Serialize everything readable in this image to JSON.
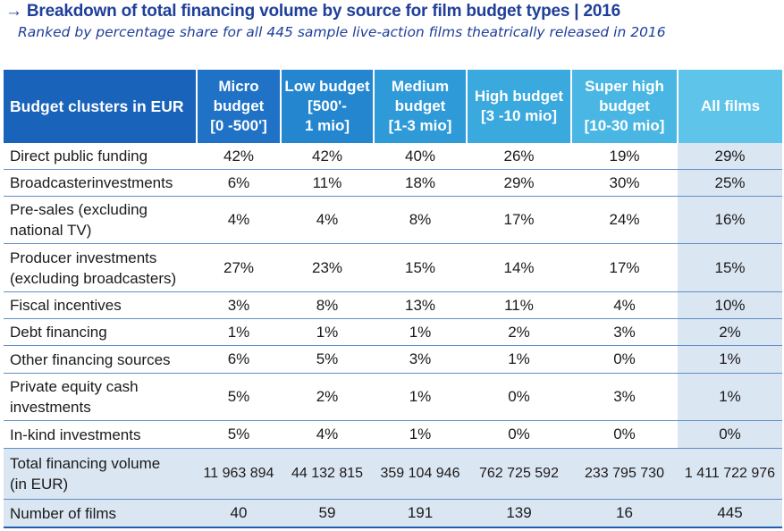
{
  "title": "→ Breakdown of total financing volume by source for film budget types | 2016",
  "subtitle": "Ranked by percentage share for all 445 sample live-action films theatrically released in 2016",
  "table": {
    "header": {
      "label": "Budget clusters in EUR",
      "columns": [
        [
          "Micro",
          "budget",
          "[0 -500']"
        ],
        [
          "Low budget",
          "[500'-",
          "1 mio]"
        ],
        [
          "Medium",
          "budget",
          "[1-3 mio]"
        ],
        [
          "High budget",
          "[3 -10 mio]"
        ],
        [
          "Super high",
          "budget",
          "[10-30 mio]"
        ],
        [
          "All films"
        ]
      ]
    },
    "rows": [
      {
        "label": [
          "Direct public funding"
        ],
        "values": [
          "42%",
          "42%",
          "40%",
          "26%",
          "19%",
          "29%"
        ]
      },
      {
        "label": [
          "Broadcasterinvestments"
        ],
        "values": [
          "6%",
          "11%",
          "18%",
          "29%",
          "30%",
          "25%"
        ]
      },
      {
        "label": [
          "Pre-sales (excluding",
          "national TV)"
        ],
        "values": [
          "4%",
          "4%",
          "8%",
          "17%",
          "24%",
          "16%"
        ]
      },
      {
        "label": [
          "Producer investments",
          "(excluding broadcasters)"
        ],
        "values": [
          "27%",
          "23%",
          "15%",
          "14%",
          "17%",
          "15%"
        ]
      },
      {
        "label": [
          "Fiscal incentives"
        ],
        "values": [
          "3%",
          "8%",
          "13%",
          "11%",
          "4%",
          "10%"
        ]
      },
      {
        "label": [
          "Debt financing"
        ],
        "values": [
          "1%",
          "1%",
          "1%",
          "2%",
          "3%",
          "2%"
        ]
      },
      {
        "label": [
          "Other financing sources"
        ],
        "values": [
          "6%",
          "5%",
          "3%",
          "1%",
          "0%",
          "1%"
        ]
      },
      {
        "label": [
          "Private equity cash",
          "investments"
        ],
        "values": [
          "5%",
          "2%",
          "1%",
          "0%",
          "3%",
          "1%"
        ]
      },
      {
        "label": [
          "In-kind investments"
        ],
        "values": [
          "5%",
          "4%",
          "1%",
          "0%",
          "0%",
          "0%"
        ]
      }
    ],
    "total": {
      "label": [
        "Total financing volume",
        "(in EUR)"
      ],
      "values": [
        "11 963 894",
        "44 132 815",
        "359 104 946",
        "762 725 592",
        "233 795 730",
        "1 411 722 976"
      ]
    },
    "count": {
      "label": [
        "Number of films"
      ],
      "values": [
        "40",
        "59",
        "191",
        "139",
        "16",
        "445"
      ]
    }
  }
}
